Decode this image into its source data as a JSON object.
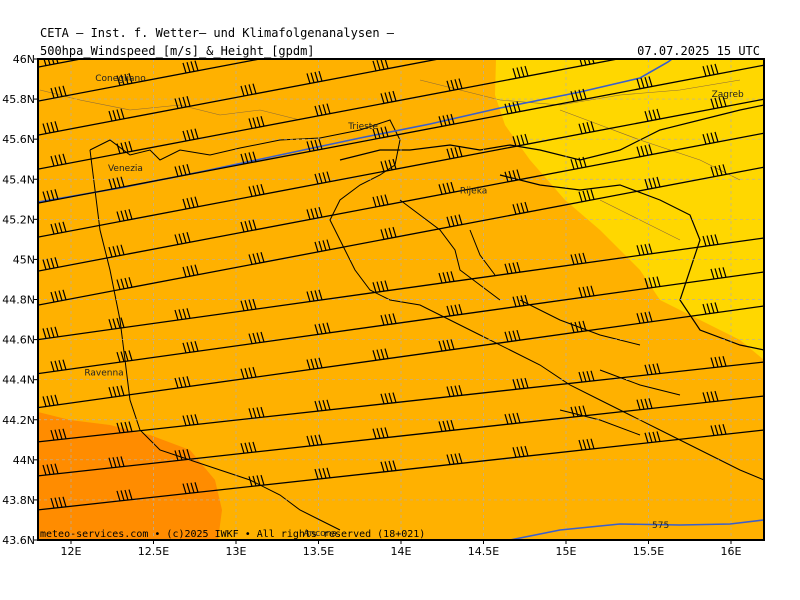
{
  "header": {
    "org": "CETA – Inst. f. Wetter– und Klimafolgenanalysen –",
    "subtitle": "500hpa_Windspeed_[m/s]_&_Height_[gpdm]",
    "valid_time": "07.07.2025 15 UTC"
  },
  "footer": {
    "credit": "meteo-services.com • (c)2025 IWKF • All rights reserved (18+021)"
  },
  "colors": {
    "speed_low": "#ffd700",
    "speed_mid": "#ffb100",
    "speed_high": "#ff8c00",
    "height_contour": "#3a5fcd"
  },
  "map": {
    "lon_range": [
      11.8,
      16.2
    ],
    "lat_range": [
      43.6,
      46.0
    ],
    "x_ticks": [
      "12E",
      "12.5E",
      "13E",
      "13.5E",
      "14E",
      "14.5E",
      "15E",
      "15.5E",
      "16E"
    ],
    "y_ticks": [
      "46N",
      "45.8N",
      "45.6N",
      "45.4N",
      "45.2N",
      "45N",
      "44.8N",
      "44.6N",
      "44.4N",
      "44.2N",
      "44N",
      "43.8N",
      "43.6N"
    ],
    "cities": [
      {
        "name": "Conegliano",
        "lon": 12.3,
        "lat": 45.89
      },
      {
        "name": "Venezia",
        "lon": 12.33,
        "lat": 45.44
      },
      {
        "name": "Trieste",
        "lon": 13.77,
        "lat": 45.65
      },
      {
        "name": "Rijeka",
        "lon": 14.44,
        "lat": 45.33
      },
      {
        "name": "Zagreb",
        "lon": 15.98,
        "lat": 45.81
      },
      {
        "name": "Ravenna",
        "lon": 12.2,
        "lat": 44.42
      },
      {
        "name": "Ancona",
        "lon": 13.51,
        "lat": 43.62
      }
    ],
    "contour_label": "575"
  }
}
